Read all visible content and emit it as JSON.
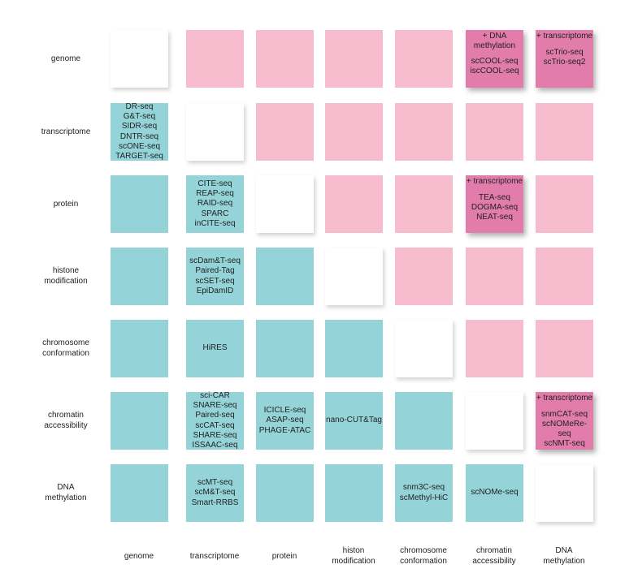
{
  "colors": {
    "pink": "#f6bccd",
    "teal": "#94d4d8",
    "highlight": "#e27caa",
    "empty": "#ffffff"
  },
  "rows": [
    "genome",
    "transcriptome",
    "protein",
    "histone\nmodification",
    "chromosome\nconformation",
    "chromatin\naccessibility",
    "DNA\nmethylation"
  ],
  "columns": [
    "genome",
    "transcriptome",
    "protein",
    "histon\nmodification",
    "chromosome\nconformation",
    "chromatin\naccessibility",
    "DNA\nmethylation"
  ],
  "cells": [
    [
      {
        "kind": "empty"
      },
      {
        "kind": "pink"
      },
      {
        "kind": "pink"
      },
      {
        "kind": "pink"
      },
      {
        "kind": "pink"
      },
      {
        "kind": "highlight",
        "header": "+ DNA\nmethylation",
        "methods": "scCOOL-seq\niscCOOL-seq"
      },
      {
        "kind": "highlight",
        "header": "+ transcriptome",
        "methods": "scTrio-seq\nscTrio-seq2"
      }
    ],
    [
      {
        "kind": "teal",
        "methods": "DR-seq\nG&T-seq\nSIDR-seq\nDNTR-seq\nscONE-seq\nTARGET-seq"
      },
      {
        "kind": "empty"
      },
      {
        "kind": "pink"
      },
      {
        "kind": "pink"
      },
      {
        "kind": "pink"
      },
      {
        "kind": "pink"
      },
      {
        "kind": "pink"
      }
    ],
    [
      {
        "kind": "teal"
      },
      {
        "kind": "teal",
        "methods": "CITE-seq\nREAP-seq\nRAID-seq\nSPARC\ninCITE-seq"
      },
      {
        "kind": "empty"
      },
      {
        "kind": "pink"
      },
      {
        "kind": "pink"
      },
      {
        "kind": "highlight",
        "header": "+ transcriptome",
        "methods": "TEA-seq\nDOGMA-seq\nNEAT-seq"
      },
      {
        "kind": "pink"
      }
    ],
    [
      {
        "kind": "teal"
      },
      {
        "kind": "teal",
        "methods": "scDam&T-seq\nPaired-Tag\nscSET-seq\nEpiDamID"
      },
      {
        "kind": "teal"
      },
      {
        "kind": "empty"
      },
      {
        "kind": "pink"
      },
      {
        "kind": "pink"
      },
      {
        "kind": "pink"
      }
    ],
    [
      {
        "kind": "teal"
      },
      {
        "kind": "teal",
        "methods": "HiRES"
      },
      {
        "kind": "teal"
      },
      {
        "kind": "teal"
      },
      {
        "kind": "empty"
      },
      {
        "kind": "pink"
      },
      {
        "kind": "pink"
      }
    ],
    [
      {
        "kind": "teal"
      },
      {
        "kind": "teal",
        "methods": "sci-CAR\nSNARE-seq\nPaired-seq\nscCAT-seq\nSHARE-seq\nISSAAC-seq"
      },
      {
        "kind": "teal",
        "methods": "ICICLE-seq\nASAP-seq\nPHAGE-ATAC"
      },
      {
        "kind": "teal",
        "methods": "nano-CUT&Tag"
      },
      {
        "kind": "teal"
      },
      {
        "kind": "empty"
      },
      {
        "kind": "highlight",
        "header": "+ transcriptome",
        "methods": "snmCAT-seq\nscNOMeRe-seq\nscNMT-seq"
      }
    ],
    [
      {
        "kind": "teal"
      },
      {
        "kind": "teal",
        "methods": "scMT-seq\nscM&T-seq\nSmart-RRBS"
      },
      {
        "kind": "teal"
      },
      {
        "kind": "teal"
      },
      {
        "kind": "teal",
        "methods": "snm3C-seq\nscMethyl-HiC"
      },
      {
        "kind": "teal",
        "methods": "scNOMe-seq"
      },
      {
        "kind": "empty"
      }
    ]
  ]
}
